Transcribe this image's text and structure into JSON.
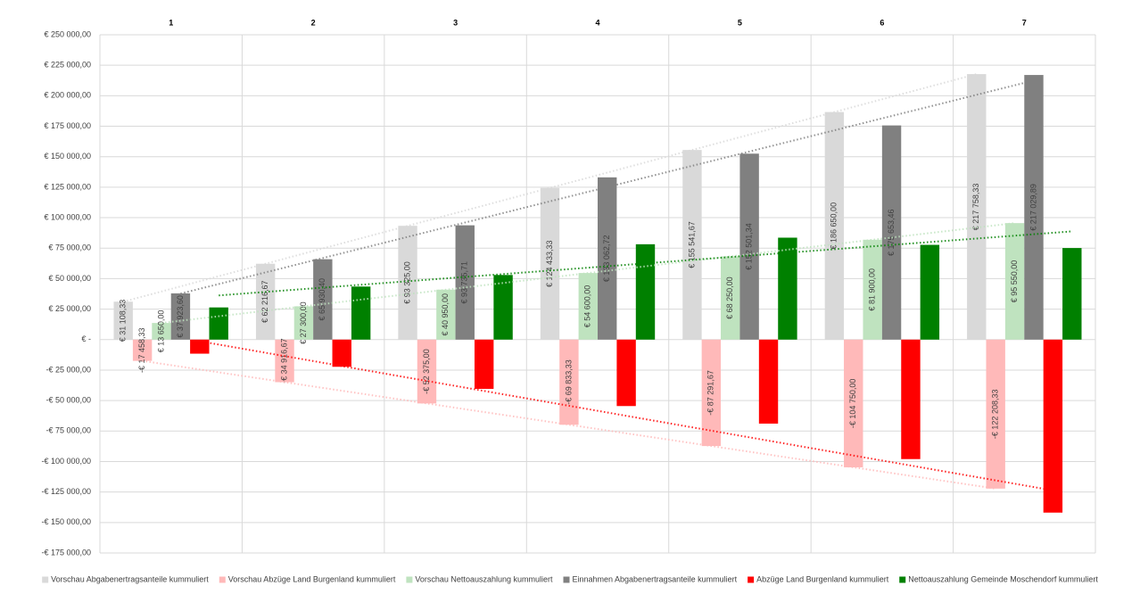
{
  "chart_data": {
    "type": "bar",
    "categories": [
      "1",
      "2",
      "3",
      "4",
      "5",
      "6",
      "7"
    ],
    "ylim": [
      -175000,
      250000
    ],
    "yticks": [
      {
        "value": 250000,
        "label": "€ 250 000,00"
      },
      {
        "value": 225000,
        "label": "€ 225 000,00"
      },
      {
        "value": 200000,
        "label": "€ 200 000,00"
      },
      {
        "value": 175000,
        "label": "€ 175 000,00"
      },
      {
        "value": 150000,
        "label": "€ 150 000,00"
      },
      {
        "value": 125000,
        "label": "€ 125 000,00"
      },
      {
        "value": 100000,
        "label": "€ 100 000,00"
      },
      {
        "value": 75000,
        "label": "€ 75 000,00"
      },
      {
        "value": 50000,
        "label": "€ 50 000,00"
      },
      {
        "value": 25000,
        "label": "€ 25 000,00"
      },
      {
        "value": 0,
        "label": "€ -"
      },
      {
        "value": -25000,
        "label": "-€ 25 000,00"
      },
      {
        "value": -50000,
        "label": "-€ 50 000,00"
      },
      {
        "value": -75000,
        "label": "-€ 75 000,00"
      },
      {
        "value": -100000,
        "label": "-€ 100 000,00"
      },
      {
        "value": -125000,
        "label": "-€ 125 000,00"
      },
      {
        "value": -150000,
        "label": "-€ 150 000,00"
      },
      {
        "value": -175000,
        "label": "-€ 175 000,00"
      }
    ],
    "grid": true,
    "trendlines": true,
    "legend": "bottom",
    "series": [
      {
        "name": "Vorschau Abgabenertragsanteile kummuliert",
        "color": "#d9d9d9",
        "values": [
          31108.33,
          62216.67,
          93325.0,
          124433.33,
          155541.67,
          186650.0,
          217758.33
        ],
        "value_labels": [
          "€ 31 108,33",
          "€ 62 216,67",
          "€ 93 325,00",
          "€ 124 433,33",
          "€ 155 541,67",
          "€ 186 650,00",
          "€ 217 758,33"
        ]
      },
      {
        "name": "Vorschau Abzüge Land Burgenland kummuliert",
        "color": "#ffb9b9",
        "values": [
          -17458.33,
          -34916.67,
          -52375.0,
          -69833.33,
          -87291.67,
          -104750.0,
          -122208.33
        ],
        "value_labels": [
          "-€ 17 458,33",
          "-€ 34 916,67",
          "-€ 52 375,00",
          "-€ 69 833,33",
          "-€ 87 291,67",
          "-€ 104 750,00",
          "-€ 122 208,33"
        ]
      },
      {
        "name": "Vorschau Nettoauszahlung kummuliert",
        "color": "#bfe3bf",
        "values": [
          13650,
          27300,
          40950,
          54600,
          68250,
          81900,
          95550
        ],
        "value_labels": [
          "€ 13 650,00",
          "€ 27 300,00",
          "€ 40 950,00",
          "€ 54 600,00",
          "€ 68 250,00",
          "€ 81 900,00",
          "€ 95 550,00"
        ]
      },
      {
        "name": "Einnahmen Abgabenertragsanteile kummuliert",
        "color": "#808080",
        "values": [
          37923.6,
          65930.4,
          93735.71,
          133062.72,
          152501.34,
          175653.46,
          217029.89
        ],
        "value_labels": [
          "€ 37 923,60",
          "€ 65 930,40",
          "€ 93 735,71",
          "€ 133 062,72",
          "€ 152 501,34",
          "€ 175 653,46",
          "€ 217 029,89"
        ]
      },
      {
        "name": "Abzüge Land Burgenland kummuliert",
        "color": "#ff0000",
        "values": [
          -11541,
          -22300,
          -40400,
          -54500,
          -68900,
          -98000,
          -141900
        ]
      },
      {
        "name": "Nettoauszahlung Gemeinde Moschendorf kummuliert",
        "color": "#008000",
        "values": [
          26382.24,
          43500,
          53000,
          78200,
          83600,
          77700,
          75100
        ]
      }
    ]
  }
}
